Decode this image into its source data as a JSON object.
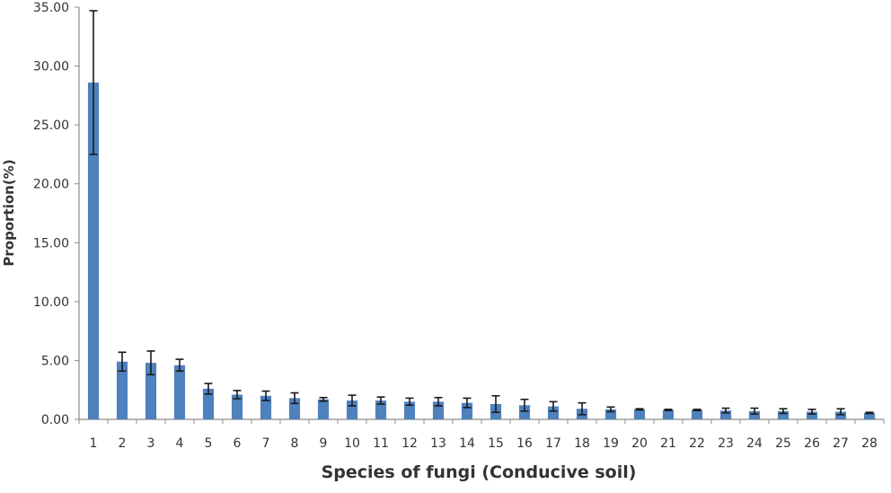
{
  "chart_data": {
    "type": "bar",
    "title": "",
    "xlabel": "Species of fungi (Conducive soil)",
    "ylabel": "Proportion(%)",
    "ylim": [
      0,
      35
    ],
    "yticks": [
      "0.00",
      "5.00",
      "10.00",
      "15.00",
      "20.00",
      "25.00",
      "30.00",
      "35.00"
    ],
    "grid": false,
    "legend": null,
    "bar_color": "#4f81bd",
    "error_bar_color": "#1a1a1a",
    "categories": [
      "1",
      "2",
      "3",
      "4",
      "5",
      "6",
      "7",
      "8",
      "9",
      "10",
      "11",
      "12",
      "13",
      "14",
      "15",
      "16",
      "17",
      "18",
      "19",
      "20",
      "21",
      "22",
      "23",
      "24",
      "25",
      "26",
      "27",
      "28"
    ],
    "values": [
      28.6,
      4.9,
      4.8,
      4.6,
      2.6,
      2.1,
      2.0,
      1.8,
      1.7,
      1.6,
      1.6,
      1.5,
      1.5,
      1.4,
      1.3,
      1.2,
      1.1,
      0.9,
      0.85,
      0.85,
      0.8,
      0.8,
      0.75,
      0.7,
      0.7,
      0.65,
      0.65,
      0.55
    ],
    "error": [
      6.1,
      0.8,
      1.0,
      0.5,
      0.45,
      0.35,
      0.4,
      0.45,
      0.15,
      0.45,
      0.3,
      0.3,
      0.35,
      0.4,
      0.7,
      0.5,
      0.4,
      0.5,
      0.2,
      0.05,
      0.05,
      0.05,
      0.2,
      0.25,
      0.2,
      0.2,
      0.25,
      0.05
    ]
  }
}
